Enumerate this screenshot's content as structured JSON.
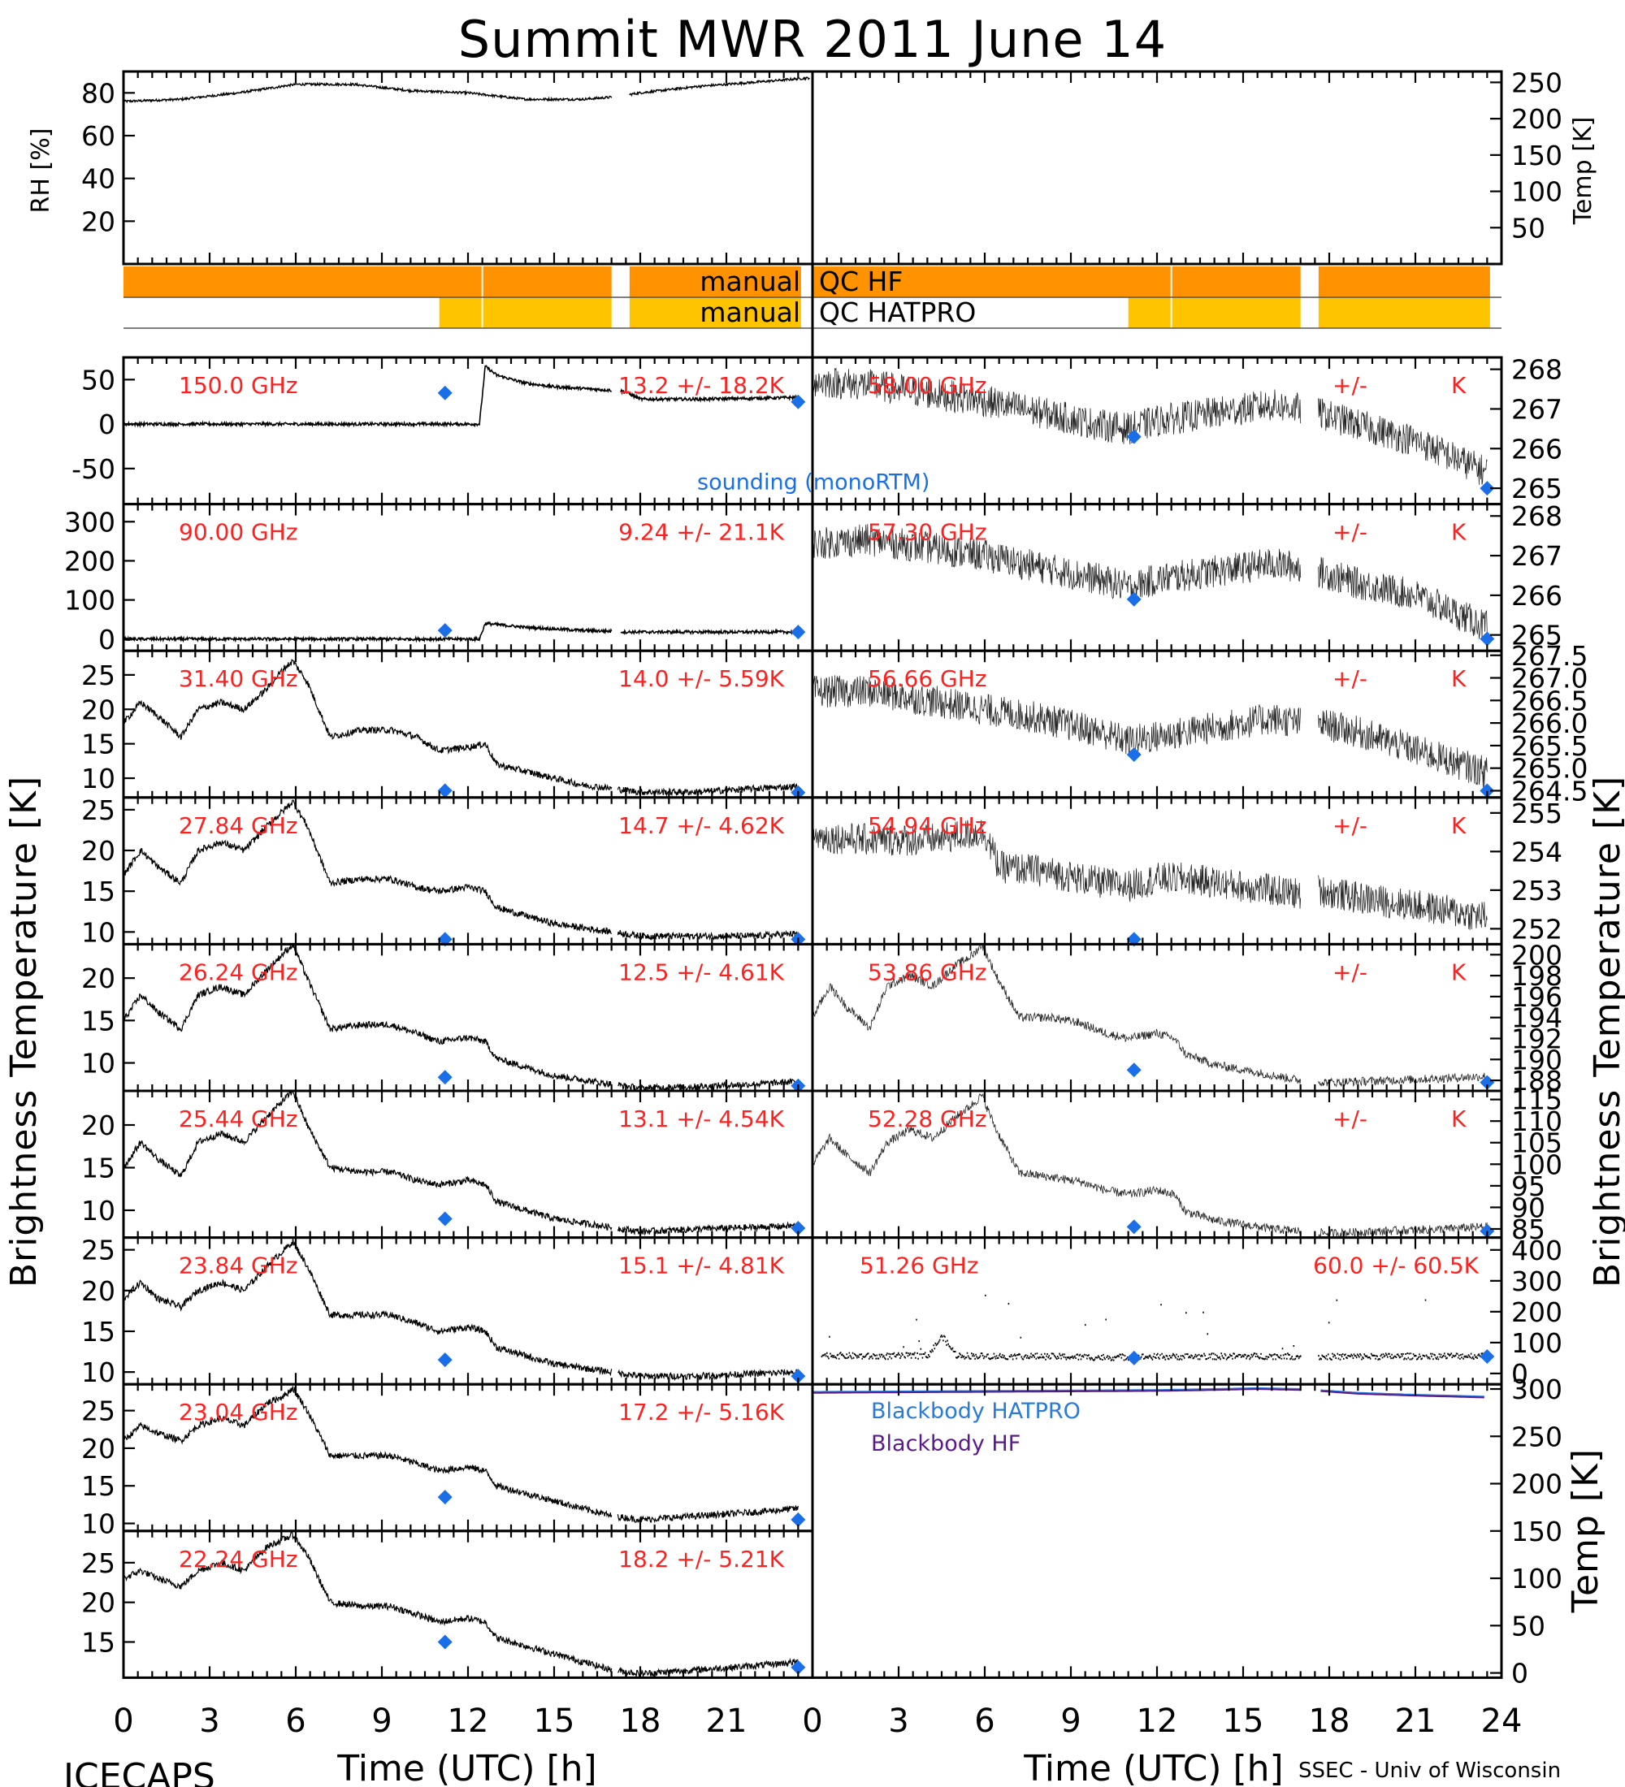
{
  "figure": {
    "title": "Summit MWR 2011 June 14",
    "footer_left": "ICECAPS",
    "footer_right": "SSEC - Univ of Wisconsin",
    "x_axis_title": "Time (UTC) [h]",
    "x_ticks": [
      "0",
      "3",
      "6",
      "9",
      "12",
      "15",
      "18",
      "21",
      "24"
    ],
    "x_ticks_right": [
      "0",
      "3",
      "6",
      "9",
      "12",
      "15",
      "18",
      "21",
      "24"
    ],
    "x_ticks_left": [
      "0",
      "3",
      "6",
      "9",
      "12",
      "15",
      "18",
      "21"
    ],
    "left_axis_title": "Brightness Temperature [K]",
    "right_axis_title": "Brightness Temperature [K]",
    "qc": {
      "hf_label_left": "manual",
      "hf_label_right": "QC HF",
      "hatpro_label_left": "manual",
      "hatpro_label_right": "QC HATPRO",
      "hf_color": "#ff9200",
      "hatpro_color": "#ffc400"
    },
    "legend": {
      "sounding": "sounding (monoRTM)",
      "sounding_color": "#1a6fe8",
      "blackbody_hatpro": "Blackbody HATPRO",
      "blackbody_hatpro_color": "#2a7ad8",
      "blackbody_hf": "Blackbody HF",
      "blackbody_hf_color": "#5a1a8a"
    }
  },
  "chart_data": [
    {
      "type": "line",
      "panel": "RH / temperature",
      "ylabel": "RH [%]",
      "y_ticks": [
        "20",
        "40",
        "60",
        "80"
      ],
      "ylim": [
        0,
        90
      ],
      "right_ylabel": "Temp [K]",
      "right_y_ticks": [
        "50",
        "100",
        "150",
        "200",
        "250"
      ],
      "right_ylim": [
        0,
        265
      ],
      "x": [
        0,
        2,
        4,
        6,
        8,
        10,
        12,
        14,
        16,
        17,
        18,
        20,
        22,
        23.9
      ],
      "series": [
        {
          "values": [
            76,
            77,
            80,
            84,
            84,
            81,
            80,
            77,
            77,
            78,
            80,
            83,
            85,
            87
          ]
        }
      ],
      "xlim": [
        0,
        24
      ]
    },
    {
      "type": "bar",
      "panel": "manual QC",
      "hf_flagged_intervals": [
        [
          0,
          17
        ],
        [
          17.6,
          23.6
        ]
      ],
      "hatpro_flagged_intervals": [
        [
          11,
          17
        ],
        [
          17.6,
          23.6
        ]
      ],
      "xlim": [
        0,
        24
      ]
    },
    {
      "type": "line",
      "channel": "150.0 GHz",
      "stat": "13.2 +/- 18.2K",
      "y_ticks": [
        "50",
        "0",
        "-50"
      ],
      "ylim": [
        -90,
        75
      ],
      "x": [
        0,
        12.4,
        12.6,
        13,
        14,
        15,
        16,
        17,
        17.5,
        18,
        20,
        22,
        23.5
      ],
      "values": [
        0,
        0,
        65,
        55,
        46,
        42,
        40,
        38,
        36,
        28,
        28,
        29,
        30
      ],
      "sounding": [
        [
          11.2,
          35
        ],
        [
          23.5,
          25
        ]
      ]
    },
    {
      "type": "line",
      "channel": "90.00 GHz",
      "stat": "9.24 +/- 21.1K",
      "y_ticks": [
        "300",
        "200",
        "100",
        "0"
      ],
      "ylim": [
        -30,
        345
      ],
      "x": [
        0,
        12.4,
        12.6,
        14,
        16,
        17,
        17.5,
        20,
        23.5
      ],
      "values": [
        0,
        0,
        40,
        30,
        22,
        20,
        18,
        18,
        18
      ],
      "sounding": [
        [
          11.2,
          22
        ],
        [
          23.5,
          18
        ]
      ]
    },
    {
      "type": "line",
      "channel": "31.40 GHz",
      "stat": "14.0 +/- 5.59K",
      "y_ticks": [
        "25",
        "20",
        "15",
        "10"
      ],
      "ylim": [
        7.2,
        28.5
      ],
      "x": [
        0,
        0.6,
        1.2,
        2,
        2.6,
        3.4,
        4.2,
        5,
        5.6,
        5.9,
        6.4,
        7.2,
        8.3,
        9.3,
        10.2,
        11,
        12,
        12.6,
        13,
        14,
        15,
        16,
        17,
        18,
        20,
        22,
        23.5
      ],
      "values": [
        18,
        21,
        19,
        16,
        20,
        21,
        20,
        23,
        26,
        27,
        24,
        16,
        17,
        17,
        16,
        14,
        14.5,
        15,
        12,
        11,
        10,
        9,
        8.5,
        8,
        8,
        8.5,
        8.8
      ],
      "sounding": [
        [
          11.2,
          8.2
        ],
        [
          23.5,
          7.5
        ]
      ]
    },
    {
      "type": "line",
      "channel": "27.84 GHz",
      "stat": "14.7 +/- 4.62K",
      "y_ticks": [
        "25",
        "20",
        "15",
        "10"
      ],
      "ylim": [
        8.5,
        26.5
      ],
      "x": [
        0,
        0.6,
        1.2,
        2,
        2.6,
        3.4,
        4.2,
        5,
        5.6,
        5.9,
        6.4,
        7.2,
        8.3,
        9.3,
        10.2,
        11,
        12,
        12.6,
        13,
        14,
        15,
        16,
        17,
        18,
        20,
        22,
        23.5
      ],
      "values": [
        17,
        20,
        18,
        16,
        20,
        21,
        20,
        23,
        25,
        26,
        23,
        16,
        16.5,
        16.5,
        15.5,
        15,
        15.5,
        15,
        13,
        12,
        11,
        10.5,
        10,
        9.5,
        9.5,
        9.5,
        9.8
      ],
      "sounding": [
        [
          11.2,
          7
        ],
        [
          23.5,
          8
        ]
      ]
    },
    {
      "type": "line",
      "channel": "26.24 GHz",
      "stat": "12.5 +/- 4.61K",
      "y_ticks": [
        "20",
        "15",
        "10"
      ],
      "ylim": [
        6.7,
        24
      ],
      "x": [
        0,
        0.6,
        1.2,
        2,
        2.6,
        3.4,
        4.2,
        5,
        5.6,
        5.9,
        6.4,
        7.2,
        8.3,
        9.3,
        10.2,
        11,
        12,
        12.6,
        13,
        14,
        15,
        16,
        17,
        18,
        20,
        22,
        23.5
      ],
      "values": [
        15,
        18,
        16,
        14,
        18,
        19,
        18,
        21,
        23,
        24,
        20,
        14,
        14.5,
        14.5,
        13.5,
        12.5,
        13,
        12.5,
        10.5,
        9.5,
        8.5,
        8,
        7.5,
        7,
        7.2,
        7.5,
        7.8
      ],
      "sounding": [
        [
          11.2,
          8.3
        ],
        [
          23.5,
          7.3
        ]
      ]
    },
    {
      "type": "line",
      "channel": "25.44 GHz",
      "stat": "13.1 +/- 4.54K",
      "y_ticks": [
        "20",
        "15",
        "10"
      ],
      "ylim": [
        6.8,
        24
      ],
      "x": [
        0,
        0.6,
        1.2,
        2,
        2.6,
        3.4,
        4.2,
        5,
        5.6,
        5.9,
        6.4,
        7.2,
        8.3,
        9.3,
        10.2,
        11,
        12,
        12.6,
        13,
        14,
        15,
        16,
        17,
        18,
        20,
        22,
        23.5
      ],
      "values": [
        15,
        18,
        16,
        14,
        18,
        19,
        18,
        21,
        23,
        24,
        20,
        15,
        14.5,
        14.5,
        13.5,
        13,
        13.5,
        13,
        11,
        10,
        9,
        8.5,
        8,
        7.5,
        7.8,
        8,
        8.2
      ],
      "sounding": [
        [
          11.2,
          9
        ],
        [
          23.5,
          7.9
        ]
      ]
    },
    {
      "type": "line",
      "channel": "23.84 GHz",
      "stat": "15.1 +/- 4.81K",
      "y_ticks": [
        "25",
        "20",
        "15",
        "10"
      ],
      "ylim": [
        8.5,
        26.5
      ],
      "x": [
        0,
        0.6,
        1.2,
        2,
        2.6,
        3.4,
        4.2,
        5,
        5.6,
        5.9,
        6.4,
        7.2,
        8.3,
        9.3,
        10.2,
        11,
        12,
        12.6,
        13,
        14,
        15,
        16,
        17,
        18,
        20,
        22,
        23.5
      ],
      "values": [
        19,
        21,
        19,
        18,
        20,
        21,
        20,
        23,
        25,
        26,
        23,
        17,
        17,
        17,
        16,
        15,
        15.5,
        15,
        13,
        12,
        11,
        10.5,
        10,
        9.5,
        9.5,
        9.8,
        10
      ],
      "sounding": [
        [
          11.2,
          11.5
        ],
        [
          23.5,
          9.5
        ]
      ]
    },
    {
      "type": "line",
      "channel": "23.04 GHz",
      "stat": "17.2 +/- 5.16K",
      "y_ticks": [
        "25",
        "20",
        "15",
        "10"
      ],
      "ylim": [
        9,
        28.5
      ],
      "x": [
        0,
        0.6,
        1.2,
        2,
        2.6,
        3.4,
        4.2,
        5,
        5.6,
        5.9,
        6.4,
        7.2,
        8.3,
        9.3,
        10.2,
        11,
        12,
        12.6,
        13,
        14,
        15,
        16,
        17,
        18,
        20,
        22,
        23.5
      ],
      "values": [
        21,
        23,
        22,
        21,
        23,
        24,
        23,
        26,
        27,
        28,
        25,
        19,
        19,
        19,
        18,
        17,
        17.5,
        17,
        15,
        14,
        13,
        12,
        11,
        10.5,
        11,
        11.5,
        12
      ],
      "sounding": [
        [
          11.2,
          13.5
        ],
        [
          23.5,
          10.5
        ]
      ]
    },
    {
      "type": "line",
      "channel": "22.24 GHz",
      "stat": "18.2 +/- 5.21K",
      "y_ticks": [
        "25",
        "20",
        "15"
      ],
      "ylim": [
        10.5,
        29
      ],
      "x": [
        0,
        0.6,
        1.2,
        2,
        2.6,
        3.4,
        4.2,
        5,
        5.6,
        5.9,
        6.4,
        7.2,
        8.3,
        9.3,
        10.2,
        11,
        12,
        12.6,
        13,
        14,
        15,
        16,
        17,
        18,
        20,
        22,
        23.5
      ],
      "values": [
        23,
        24,
        23,
        22,
        24,
        25,
        24,
        27,
        28,
        28.5,
        26,
        20,
        19.5,
        19.5,
        18.5,
        17.5,
        18,
        17.5,
        15.5,
        14.5,
        13.5,
        12.5,
        11.5,
        11,
        11.5,
        12,
        12.5
      ],
      "sounding": [
        [
          11.2,
          15
        ],
        [
          23.5,
          11.8
        ]
      ]
    },
    {
      "type": "line",
      "channel": "58.00 GHz",
      "stat": "+/- K",
      "y_ticks": [
        "268",
        "267",
        "266",
        "265"
      ],
      "ylim": [
        264.6,
        268.3
      ],
      "x": [
        0,
        2,
        4,
        6,
        8,
        10,
        11,
        12,
        13,
        15,
        16,
        17,
        17.6,
        19,
        21,
        23.5
      ],
      "values": [
        267.7,
        267.6,
        267.4,
        267.2,
        266.9,
        266.6,
        266.5,
        266.7,
        266.8,
        267,
        267.1,
        267,
        266.9,
        266.6,
        266.2,
        265.4
      ],
      "sounding": [
        [
          11.2,
          266.3
        ],
        [
          23.5,
          265
        ]
      ]
    },
    {
      "type": "line",
      "channel": "57.30 GHz",
      "stat": "+/- K",
      "y_ticks": [
        "268",
        "267",
        "266",
        "265"
      ],
      "ylim": [
        264.6,
        268.3
      ],
      "x": [
        0,
        2,
        4,
        6,
        8,
        10,
        11,
        12,
        13,
        15,
        16,
        17,
        17.6,
        19,
        21,
        23.5
      ],
      "values": [
        267.3,
        267.4,
        267.2,
        267,
        266.7,
        266.4,
        266.2,
        266.4,
        266.5,
        266.7,
        266.8,
        266.7,
        266.6,
        266.3,
        266,
        265.2
      ],
      "sounding": [
        [
          11.2,
          265.9
        ],
        [
          23.5,
          264.9
        ]
      ]
    },
    {
      "type": "line",
      "channel": "56.66 GHz",
      "stat": "+/- K",
      "y_ticks": [
        "267.5",
        "267.0",
        "266.5",
        "266.0",
        "265.5",
        "265.0",
        "264.5"
      ],
      "ylim": [
        264.35,
        267.6
      ],
      "x": [
        0,
        2,
        4,
        6,
        8,
        10,
        11,
        12,
        13,
        15,
        16,
        17,
        17.6,
        19,
        21,
        23.5
      ],
      "values": [
        266.7,
        266.7,
        266.5,
        266.3,
        266.1,
        265.8,
        265.6,
        265.7,
        265.8,
        266,
        266.1,
        266,
        266,
        265.8,
        265.4,
        264.9
      ],
      "sounding": [
        [
          11.2,
          265.3
        ],
        [
          23.5,
          264.5
        ]
      ]
    },
    {
      "type": "line",
      "channel": "54.94 GHz",
      "stat": "+/- K",
      "y_ticks": [
        "255",
        "254",
        "253",
        "252"
      ],
      "ylim": [
        251.6,
        255.4
      ],
      "x": [
        0,
        2,
        4,
        6,
        6.5,
        8,
        10,
        11,
        12,
        13,
        15,
        16,
        17,
        17.6,
        19,
        21,
        23.5
      ],
      "values": [
        254.4,
        254.3,
        254.3,
        254.5,
        253.6,
        253.5,
        253.2,
        253.1,
        253.3,
        253.3,
        253.1,
        253,
        252.9,
        253,
        252.8,
        252.6,
        252.3
      ],
      "sounding": [
        [
          11.2,
          251.6
        ]
      ]
    },
    {
      "type": "line",
      "channel": "53.86 GHz",
      "stat": "+/- K",
      "y_ticks": [
        "200",
        "198",
        "196",
        "194",
        "192",
        "190",
        "188"
      ],
      "ylim": [
        187,
        201
      ],
      "x": [
        0,
        0.6,
        1.2,
        2,
        2.6,
        3.4,
        4.2,
        5,
        5.6,
        5.9,
        6.4,
        7.2,
        8.3,
        9.3,
        10.2,
        11,
        12,
        12.6,
        13,
        14,
        15,
        16,
        17,
        18,
        20,
        22,
        23.5
      ],
      "values": [
        194,
        197,
        195,
        193,
        197,
        198,
        197,
        199,
        200,
        201,
        198,
        194,
        194,
        193.5,
        192.5,
        192,
        192.5,
        192,
        190.5,
        189.5,
        189,
        188.5,
        188,
        187.8,
        188,
        188.2,
        188.4
      ],
      "sounding": [
        [
          11.2,
          189
        ],
        [
          23.5,
          187.8
        ]
      ]
    },
    {
      "type": "line",
      "channel": "52.28 GHz",
      "stat": "+/- K",
      "y_ticks": [
        "115",
        "110",
        "105",
        "100",
        "95",
        "90",
        "85"
      ],
      "ylim": [
        83,
        117
      ],
      "x": [
        0,
        0.6,
        1.2,
        2,
        2.6,
        3.4,
        4.2,
        5,
        5.6,
        5.9,
        6.4,
        7.2,
        8.3,
        9.3,
        10.2,
        11,
        12,
        12.6,
        13,
        14,
        15,
        16,
        17,
        18,
        20,
        22,
        23.5
      ],
      "values": [
        100,
        106,
        102,
        98,
        105,
        108,
        106,
        111,
        114,
        116,
        108,
        98,
        97,
        96,
        94,
        93,
        94,
        93,
        89,
        87,
        86,
        85,
        84.5,
        84,
        84.5,
        85,
        85.5
      ],
      "sounding": [
        [
          11.2,
          85.5
        ],
        [
          23.5,
          84.5
        ]
      ]
    },
    {
      "type": "scatter",
      "channel": "51.26 GHz",
      "stat": "60.0 +/- 60.5K",
      "y_ticks": [
        "400",
        "300",
        "200",
        "100",
        "0"
      ],
      "ylim": [
        -35,
        440
      ],
      "x": [
        0,
        2,
        4,
        4.5,
        5,
        6,
        8,
        10,
        12,
        14,
        16,
        17,
        17.6,
        20,
        23.5
      ],
      "values": [
        60,
        55,
        58,
        120,
        58,
        56,
        55,
        52,
        54,
        55,
        56,
        55,
        54,
        55,
        57
      ],
      "sounding": [
        [
          11.2,
          50
        ],
        [
          23.5,
          55
        ]
      ]
    },
    {
      "type": "line",
      "panel": "Blackbody temperature",
      "ylabel": "Temp [K]",
      "y_ticks": [
        "0",
        "50",
        "100",
        "150",
        "200",
        "250",
        "300"
      ],
      "ylim": [
        -5,
        305
      ],
      "x": [
        0,
        6,
        12,
        14,
        15.5,
        17,
        17.6,
        19,
        21,
        23.5
      ],
      "series": [
        {
          "name": "Blackbody HATPRO",
          "values": [
            297,
            298,
            299,
            300,
            301,
            300,
            299,
            296,
            294,
            292
          ]
        },
        {
          "name": "Blackbody HF",
          "values": [
            297,
            298,
            299,
            300,
            301,
            300,
            299,
            296,
            294,
            292
          ]
        }
      ]
    }
  ]
}
